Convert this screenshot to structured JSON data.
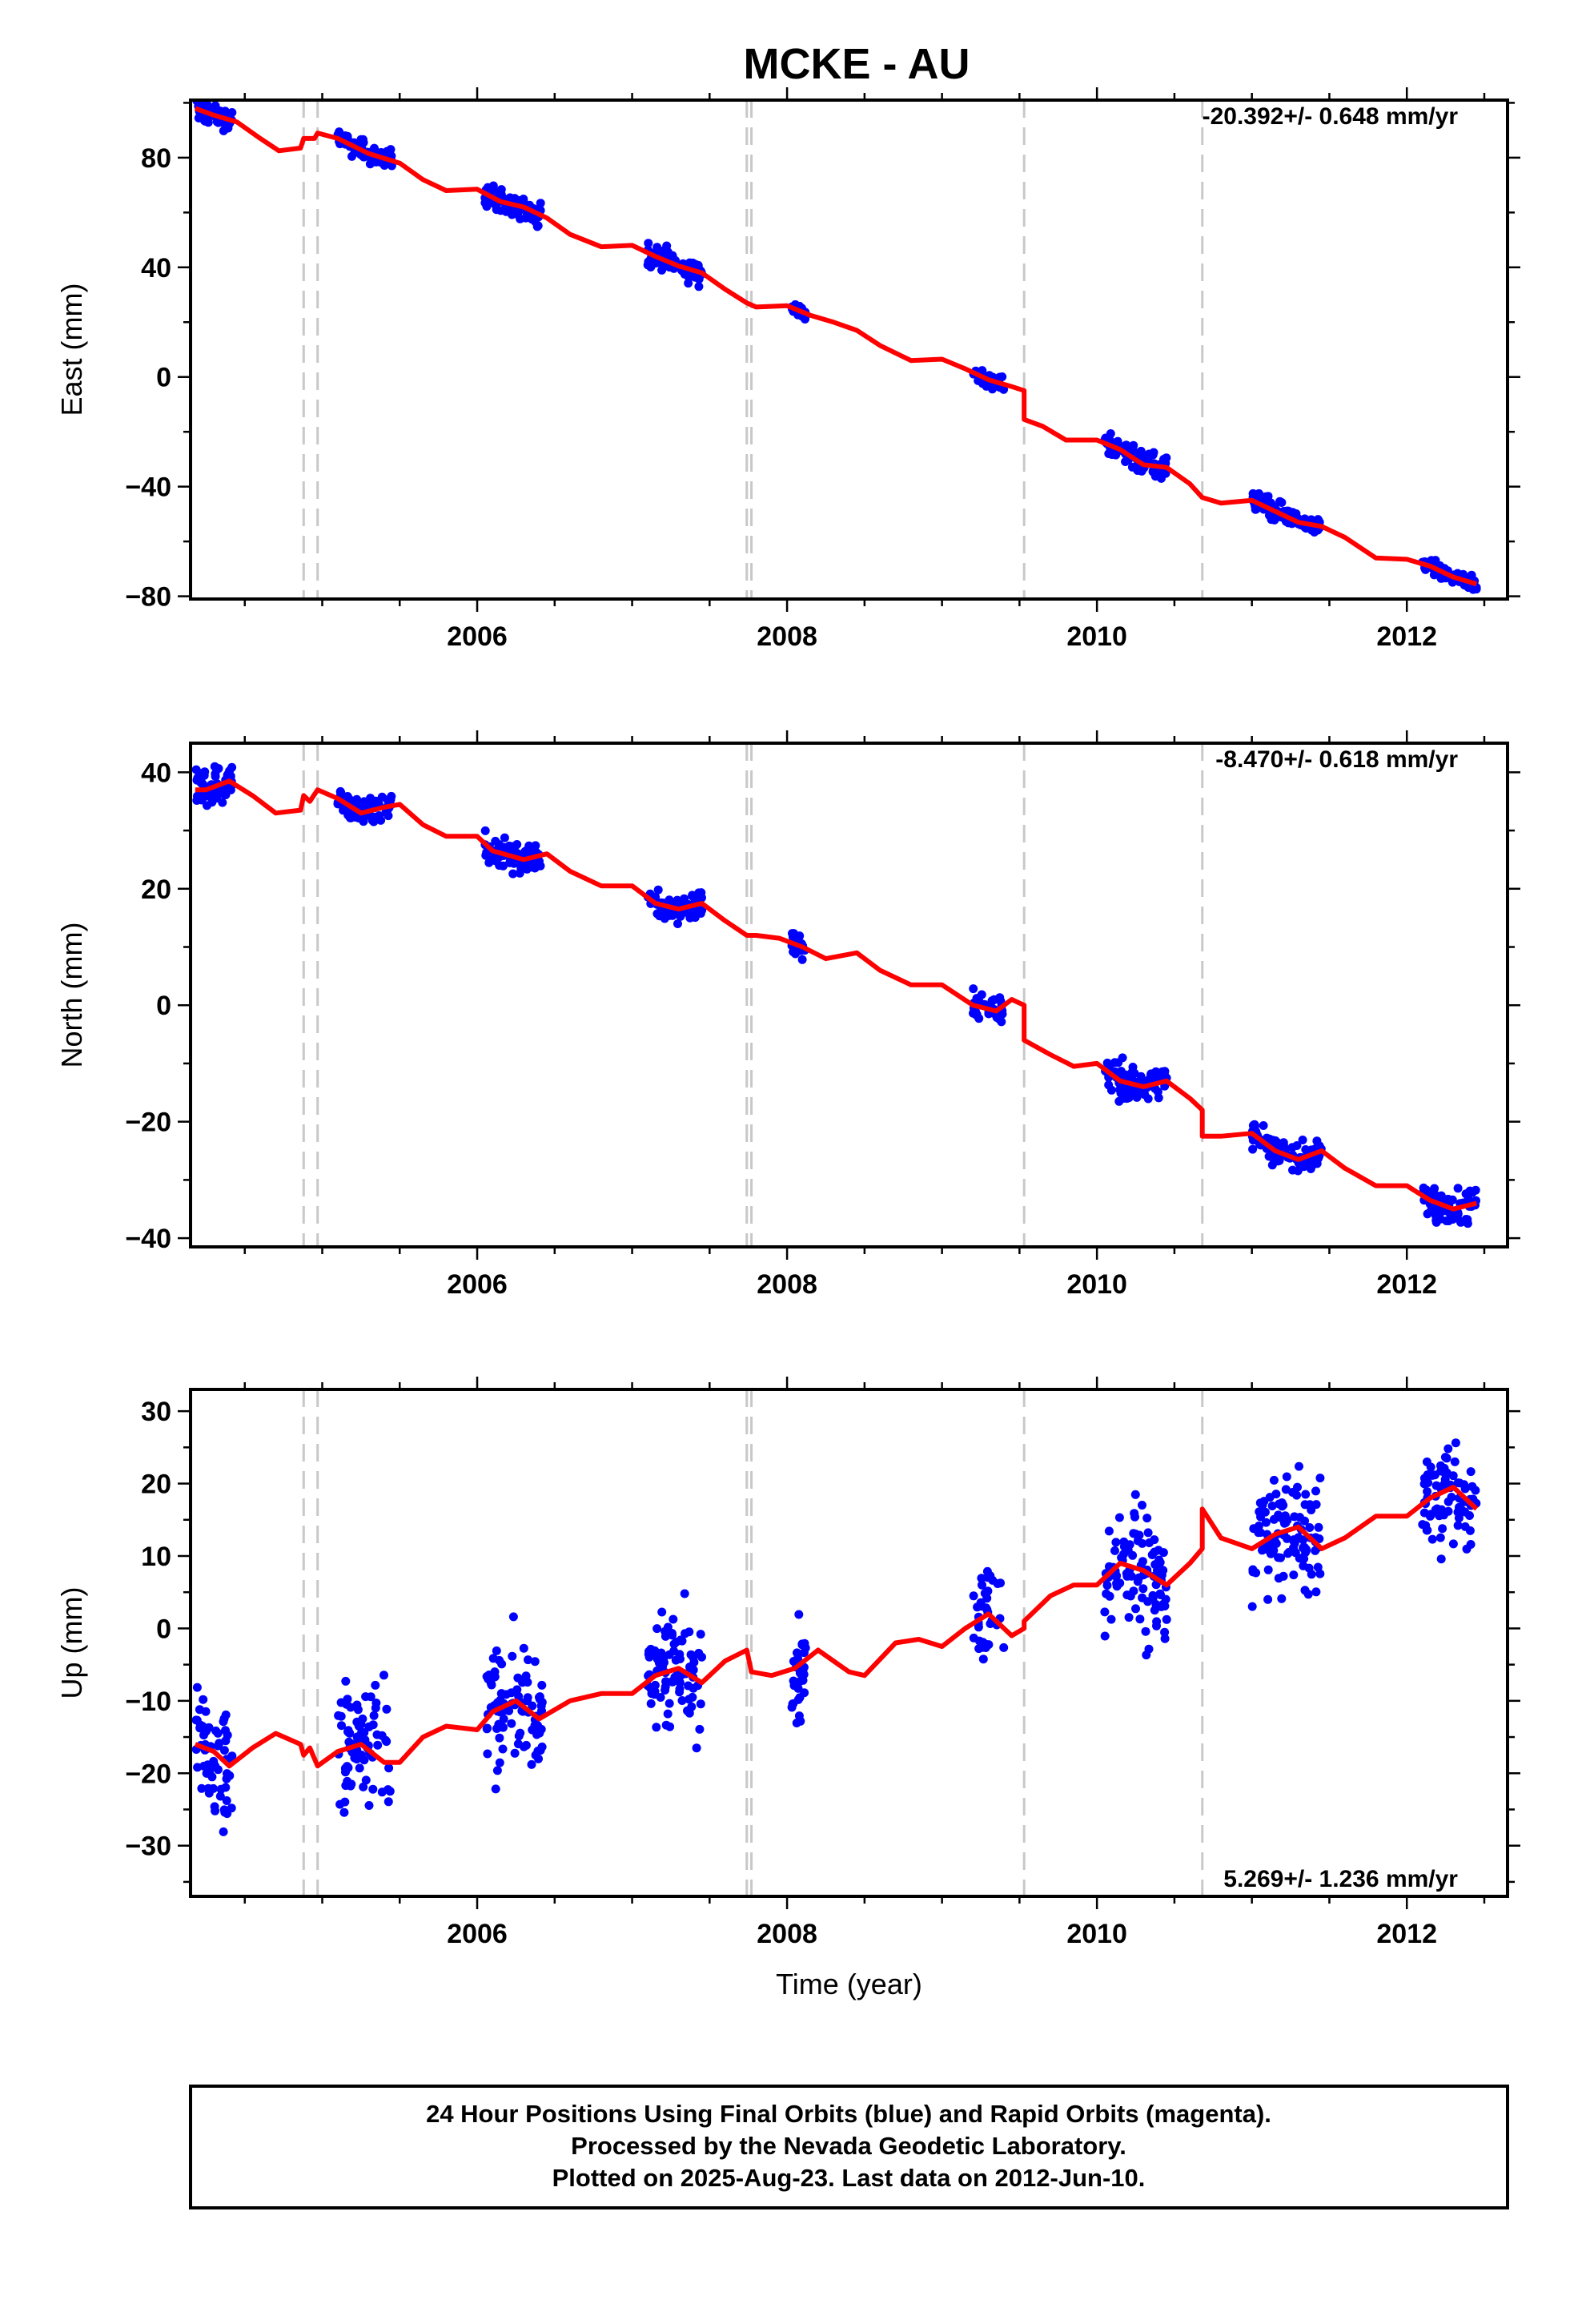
{
  "title": "MCKE - AU",
  "footer": {
    "line1": "24 Hour Positions Using Final Orbits (blue) and Rapid Orbits (magenta).",
    "line2": "Processed by the Nevada Geodetic Laboratory.",
    "line3": "Plotted on 2025-Aug-23. Last data on 2012-Jun-10."
  },
  "colors": {
    "points": "#0000ff",
    "model": "#ff0000",
    "steps": "#c8c8c8",
    "frame": "#000000"
  },
  "chart_data": [
    {
      "type": "scatter",
      "ylabel": "East (mm)",
      "xlabel": "",
      "rate_text": "-20.392+/- 0.648 mm/yr",
      "xlim": [
        2004.15,
        2012.65
      ],
      "ylim": [
        -81,
        101
      ],
      "xticks": [
        2006,
        2008,
        2010,
        2012
      ],
      "yticks": [
        80,
        40,
        0,
        -40,
        -80
      ],
      "ytick_labels": [
        "80",
        "40",
        "0",
        "−40",
        "−80"
      ],
      "steps": [
        2004.88,
        2004.97,
        2007.74,
        2007.77,
        2009.53,
        2010.68
      ],
      "model": [
        [
          2004.18,
          98
        ],
        [
          2004.3,
          95.5
        ],
        [
          2004.45,
          93
        ],
        [
          2004.6,
          87
        ],
        [
          2004.72,
          82.5
        ],
        [
          2004.86,
          83.5
        ],
        [
          2004.88,
          87
        ],
        [
          2004.95,
          87
        ],
        [
          2004.97,
          89
        ],
        [
          2005.1,
          87
        ],
        [
          2005.3,
          81.5
        ],
        [
          2005.5,
          78
        ],
        [
          2005.65,
          72
        ],
        [
          2005.8,
          68
        ],
        [
          2006.0,
          68.5
        ],
        [
          2006.15,
          64
        ],
        [
          2006.3,
          62
        ],
        [
          2006.45,
          58
        ],
        [
          2006.6,
          52
        ],
        [
          2006.8,
          47.5
        ],
        [
          2007.0,
          48
        ],
        [
          2007.15,
          44
        ],
        [
          2007.3,
          40.5
        ],
        [
          2007.45,
          38
        ],
        [
          2007.6,
          32
        ],
        [
          2007.74,
          27
        ],
        [
          2007.8,
          25.5
        ],
        [
          2008.0,
          26
        ],
        [
          2008.15,
          22.5
        ],
        [
          2008.3,
          20
        ],
        [
          2008.45,
          17
        ],
        [
          2008.6,
          11.5
        ],
        [
          2008.8,
          6
        ],
        [
          2009.0,
          6.5
        ],
        [
          2009.15,
          3
        ],
        [
          2009.3,
          -1
        ],
        [
          2009.45,
          -3.5
        ],
        [
          2009.53,
          -5
        ],
        [
          2009.53,
          -15.5
        ],
        [
          2009.65,
          -18
        ],
        [
          2009.8,
          -23
        ],
        [
          2010.0,
          -23
        ],
        [
          2010.15,
          -26.5
        ],
        [
          2010.3,
          -32
        ],
        [
          2010.45,
          -33
        ],
        [
          2010.6,
          -39
        ],
        [
          2010.68,
          -44
        ],
        [
          2010.8,
          -46
        ],
        [
          2011.0,
          -45
        ],
        [
          2011.15,
          -49
        ],
        [
          2011.3,
          -53
        ],
        [
          2011.45,
          -54.5
        ],
        [
          2011.6,
          -58.5
        ],
        [
          2011.8,
          -66
        ],
        [
          2012.0,
          -66.5
        ],
        [
          2012.15,
          -69
        ],
        [
          2012.3,
          -73
        ],
        [
          2012.45,
          -75.5
        ]
      ],
      "clusters": [
        {
          "t0": 2004.18,
          "t1": 2004.42,
          "n": 60,
          "spread": 3
        },
        {
          "t0": 2005.1,
          "t1": 2005.45,
          "n": 80,
          "spread": 2.5
        },
        {
          "t0": 2006.05,
          "t1": 2006.42,
          "n": 90,
          "spread": 3
        },
        {
          "t0": 2007.1,
          "t1": 2007.45,
          "n": 90,
          "spread": 3
        },
        {
          "t0": 2008.03,
          "t1": 2008.12,
          "n": 30,
          "spread": 2
        },
        {
          "t0": 2009.2,
          "t1": 2009.4,
          "n": 40,
          "spread": 2
        },
        {
          "t0": 2010.05,
          "t1": 2010.45,
          "n": 100,
          "spread": 3
        },
        {
          "t0": 2011.0,
          "t1": 2011.45,
          "n": 110,
          "spread": 2.5
        },
        {
          "t0": 2012.1,
          "t1": 2012.45,
          "n": 80,
          "spread": 2
        }
      ]
    },
    {
      "type": "scatter",
      "ylabel": "North (mm)",
      "xlabel": "",
      "rate_text": "-8.470+/- 0.618 mm/yr",
      "xlim": [
        2004.15,
        2012.65
      ],
      "ylim": [
        -41.5,
        45
      ],
      "xticks": [
        2006,
        2008,
        2010,
        2012
      ],
      "yticks": [
        40,
        20,
        0,
        -20,
        -40
      ],
      "ytick_labels": [
        "40",
        "20",
        "0",
        "−20",
        "−40"
      ],
      "steps": [
        2004.88,
        2004.97,
        2007.74,
        2007.77,
        2009.53,
        2010.68
      ],
      "model": [
        [
          2004.18,
          37
        ],
        [
          2004.25,
          37
        ],
        [
          2004.4,
          38.5
        ],
        [
          2004.55,
          36
        ],
        [
          2004.7,
          33
        ],
        [
          2004.86,
          33.5
        ],
        [
          2004.88,
          36
        ],
        [
          2004.92,
          35
        ],
        [
          2004.97,
          37
        ],
        [
          2005.1,
          35.5
        ],
        [
          2005.25,
          33
        ],
        [
          2005.4,
          34
        ],
        [
          2005.5,
          34.5
        ],
        [
          2005.65,
          31
        ],
        [
          2005.8,
          29
        ],
        [
          2006.0,
          29
        ],
        [
          2006.1,
          26.5
        ],
        [
          2006.3,
          25
        ],
        [
          2006.45,
          26
        ],
        [
          2006.6,
          23
        ],
        [
          2006.8,
          20.5
        ],
        [
          2007.0,
          20.5
        ],
        [
          2007.15,
          17.5
        ],
        [
          2007.3,
          16.5
        ],
        [
          2007.45,
          17.5
        ],
        [
          2007.6,
          14.5
        ],
        [
          2007.74,
          12
        ],
        [
          2007.8,
          12
        ],
        [
          2007.95,
          11.5
        ],
        [
          2008.1,
          10
        ],
        [
          2008.25,
          8
        ],
        [
          2008.45,
          9
        ],
        [
          2008.6,
          6
        ],
        [
          2008.8,
          3.5
        ],
        [
          2009.0,
          3.5
        ],
        [
          2009.2,
          0
        ],
        [
          2009.35,
          -1
        ],
        [
          2009.45,
          1
        ],
        [
          2009.53,
          0
        ],
        [
          2009.53,
          -6
        ],
        [
          2009.7,
          -8.5
        ],
        [
          2009.85,
          -10.5
        ],
        [
          2010.0,
          -10
        ],
        [
          2010.15,
          -13
        ],
        [
          2010.3,
          -14
        ],
        [
          2010.45,
          -13
        ],
        [
          2010.6,
          -16
        ],
        [
          2010.68,
          -18
        ],
        [
          2010.68,
          -22.5
        ],
        [
          2010.8,
          -22.5
        ],
        [
          2011.0,
          -22
        ],
        [
          2011.15,
          -25
        ],
        [
          2011.3,
          -26.5
        ],
        [
          2011.45,
          -25
        ],
        [
          2011.6,
          -28
        ],
        [
          2011.8,
          -31
        ],
        [
          2012.0,
          -31
        ],
        [
          2012.15,
          -33.5
        ],
        [
          2012.3,
          -35
        ],
        [
          2012.45,
          -34
        ]
      ],
      "clusters": [
        {
          "t0": 2004.18,
          "t1": 2004.42,
          "n": 60,
          "spread": 2
        },
        {
          "t0": 2005.1,
          "t1": 2005.45,
          "n": 80,
          "spread": 1.5
        },
        {
          "t0": 2006.05,
          "t1": 2006.42,
          "n": 90,
          "spread": 1.8
        },
        {
          "t0": 2007.1,
          "t1": 2007.45,
          "n": 90,
          "spread": 1.8
        },
        {
          "t0": 2008.03,
          "t1": 2008.12,
          "n": 30,
          "spread": 1.5
        },
        {
          "t0": 2009.2,
          "t1": 2009.4,
          "n": 40,
          "spread": 1.8
        },
        {
          "t0": 2010.05,
          "t1": 2010.45,
          "n": 100,
          "spread": 2
        },
        {
          "t0": 2011.0,
          "t1": 2011.45,
          "n": 110,
          "spread": 1.6
        },
        {
          "t0": 2012.1,
          "t1": 2012.45,
          "n": 80,
          "spread": 2
        }
      ]
    },
    {
      "type": "scatter",
      "ylabel": "Up (mm)",
      "xlabel": "Time (year)",
      "rate_text": "5.269+/- 1.236 mm/yr",
      "xlim": [
        2004.15,
        2012.65
      ],
      "ylim": [
        -37,
        33
      ],
      "xticks": [
        2006,
        2008,
        2010,
        2012
      ],
      "yticks": [
        30,
        20,
        10,
        0,
        -10,
        -20,
        -30
      ],
      "ytick_labels": [
        "30",
        "20",
        "10",
        "0",
        "−10",
        "−20",
        "−30"
      ],
      "steps": [
        2004.88,
        2004.97,
        2007.74,
        2007.77,
        2009.53,
        2010.68
      ],
      "model": [
        [
          2004.18,
          -16
        ],
        [
          2004.3,
          -17
        ],
        [
          2004.4,
          -19
        ],
        [
          2004.55,
          -16.5
        ],
        [
          2004.7,
          -14.5
        ],
        [
          2004.86,
          -16
        ],
        [
          2004.88,
          -17.5
        ],
        [
          2004.92,
          -16.5
        ],
        [
          2004.97,
          -19
        ],
        [
          2005.1,
          -17
        ],
        [
          2005.25,
          -16
        ],
        [
          2005.4,
          -18.5
        ],
        [
          2005.5,
          -18.5
        ],
        [
          2005.65,
          -15
        ],
        [
          2005.8,
          -13.5
        ],
        [
          2006.0,
          -14
        ],
        [
          2006.1,
          -11.5
        ],
        [
          2006.25,
          -10
        ],
        [
          2006.4,
          -12.5
        ],
        [
          2006.6,
          -10
        ],
        [
          2006.8,
          -9
        ],
        [
          2007.0,
          -9
        ],
        [
          2007.15,
          -6.5
        ],
        [
          2007.3,
          -5.5
        ],
        [
          2007.45,
          -7.5
        ],
        [
          2007.6,
          -4.5
        ],
        [
          2007.74,
          -3
        ],
        [
          2007.77,
          -6
        ],
        [
          2007.9,
          -6.5
        ],
        [
          2008.05,
          -5.5
        ],
        [
          2008.2,
          -3
        ],
        [
          2008.4,
          -6
        ],
        [
          2008.5,
          -6.5
        ],
        [
          2008.7,
          -2
        ],
        [
          2008.85,
          -1.5
        ],
        [
          2009.0,
          -2.5
        ],
        [
          2009.15,
          0
        ],
        [
          2009.3,
          2
        ],
        [
          2009.45,
          -1
        ],
        [
          2009.53,
          0
        ],
        [
          2009.53,
          1
        ],
        [
          2009.7,
          4.5
        ],
        [
          2009.85,
          6
        ],
        [
          2010.0,
          6
        ],
        [
          2010.15,
          9
        ],
        [
          2010.3,
          8
        ],
        [
          2010.45,
          6
        ],
        [
          2010.6,
          9
        ],
        [
          2010.68,
          11
        ],
        [
          2010.68,
          16.5
        ],
        [
          2010.8,
          12.5
        ],
        [
          2011.0,
          11
        ],
        [
          2011.15,
          13
        ],
        [
          2011.3,
          14
        ],
        [
          2011.45,
          11
        ],
        [
          2011.6,
          12.5
        ],
        [
          2011.8,
          15.5
        ],
        [
          2012.0,
          15.5
        ],
        [
          2012.15,
          18
        ],
        [
          2012.3,
          19.5
        ],
        [
          2012.45,
          16.5
        ]
      ],
      "clusters": [
        {
          "t0": 2004.18,
          "t1": 2004.42,
          "n": 60,
          "spread": 6
        },
        {
          "t0": 2005.1,
          "t1": 2005.45,
          "n": 80,
          "spread": 7
        },
        {
          "t0": 2006.05,
          "t1": 2006.42,
          "n": 90,
          "spread": 6
        },
        {
          "t0": 2007.1,
          "t1": 2007.45,
          "n": 90,
          "spread": 5.5
        },
        {
          "t0": 2008.03,
          "t1": 2008.12,
          "n": 30,
          "spread": 5
        },
        {
          "t0": 2009.2,
          "t1": 2009.4,
          "n": 40,
          "spread": 5
        },
        {
          "t0": 2010.05,
          "t1": 2010.45,
          "n": 100,
          "spread": 6.5
        },
        {
          "t0": 2011.0,
          "t1": 2011.45,
          "n": 110,
          "spread": 6
        },
        {
          "t0": 2012.1,
          "t1": 2012.45,
          "n": 80,
          "spread": 5
        }
      ]
    }
  ]
}
